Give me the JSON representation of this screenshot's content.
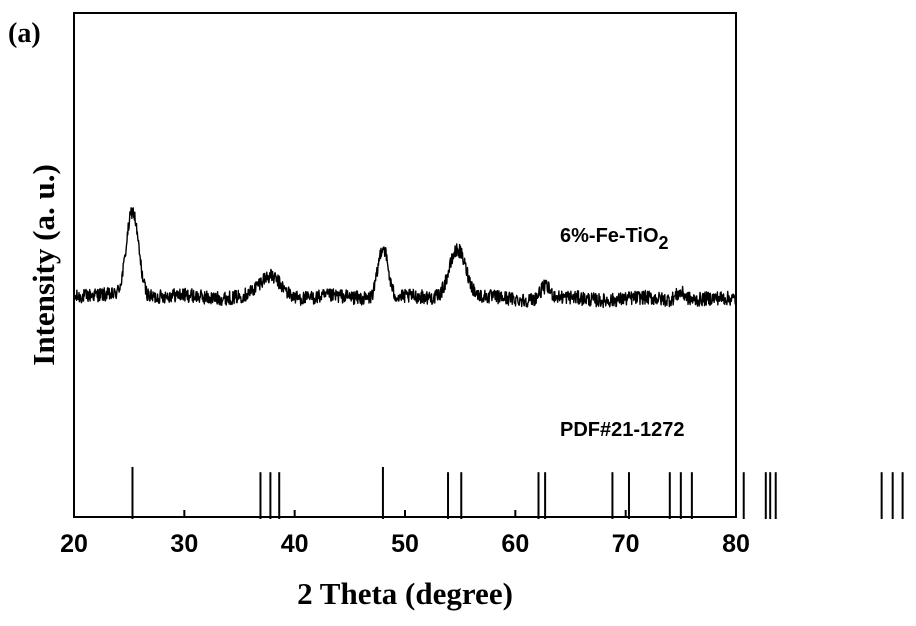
{
  "chart_data": {
    "type": "line",
    "panel_label": "(a)",
    "xlabel": "2 Theta (degree)",
    "ylabel": "Intensity (a. u.)",
    "xlim": [
      20,
      80
    ],
    "xticks": [
      20,
      30,
      40,
      50,
      60,
      70,
      80
    ],
    "yticks_labeled": false,
    "series": [
      {
        "name": "6%-Fe-TiO",
        "name_subscript": "2",
        "peaks": [
          {
            "x": 25.3,
            "height": 0.43
          },
          {
            "x": 37.8,
            "height": 0.1
          },
          {
            "x": 48.0,
            "height": 0.26
          },
          {
            "x": 54.5,
            "height": 0.15
          },
          {
            "x": 55.1,
            "height": 0.12
          },
          {
            "x": 62.7,
            "height": 0.06
          },
          {
            "x": 75.0,
            "height": 0.04
          }
        ]
      }
    ],
    "reference": {
      "name": "PDF#21-1272",
      "lines": [
        {
          "x": 25.3,
          "h": 1.0
        },
        {
          "x": 36.9,
          "h": 0.9
        },
        {
          "x": 37.8,
          "h": 0.9
        },
        {
          "x": 38.6,
          "h": 0.9
        },
        {
          "x": 48.0,
          "h": 1.0
        },
        {
          "x": 53.9,
          "h": 0.9
        },
        {
          "x": 55.1,
          "h": 0.9
        },
        {
          "x": 62.1,
          "h": 0.9
        },
        {
          "x": 62.7,
          "h": 0.9
        },
        {
          "x": 68.8,
          "h": 0.9
        },
        {
          "x": 70.3,
          "h": 0.9
        },
        {
          "x": 74.0,
          "h": 0.9
        },
        {
          "x": 75.0,
          "h": 0.9
        },
        {
          "x": 76.0,
          "h": 0.9
        },
        {
          "x": 80.7,
          "h": 0.9
        },
        {
          "x": 82.7,
          "h": 0.9
        },
        {
          "x": 83.1,
          "h": 0.9
        },
        {
          "x": 83.6,
          "h": 0.9
        },
        {
          "x": 93.2,
          "h": 0.9
        },
        {
          "x": 94.2,
          "h": 0.9
        },
        {
          "x": 95.1,
          "h": 0.9
        }
      ]
    }
  }
}
